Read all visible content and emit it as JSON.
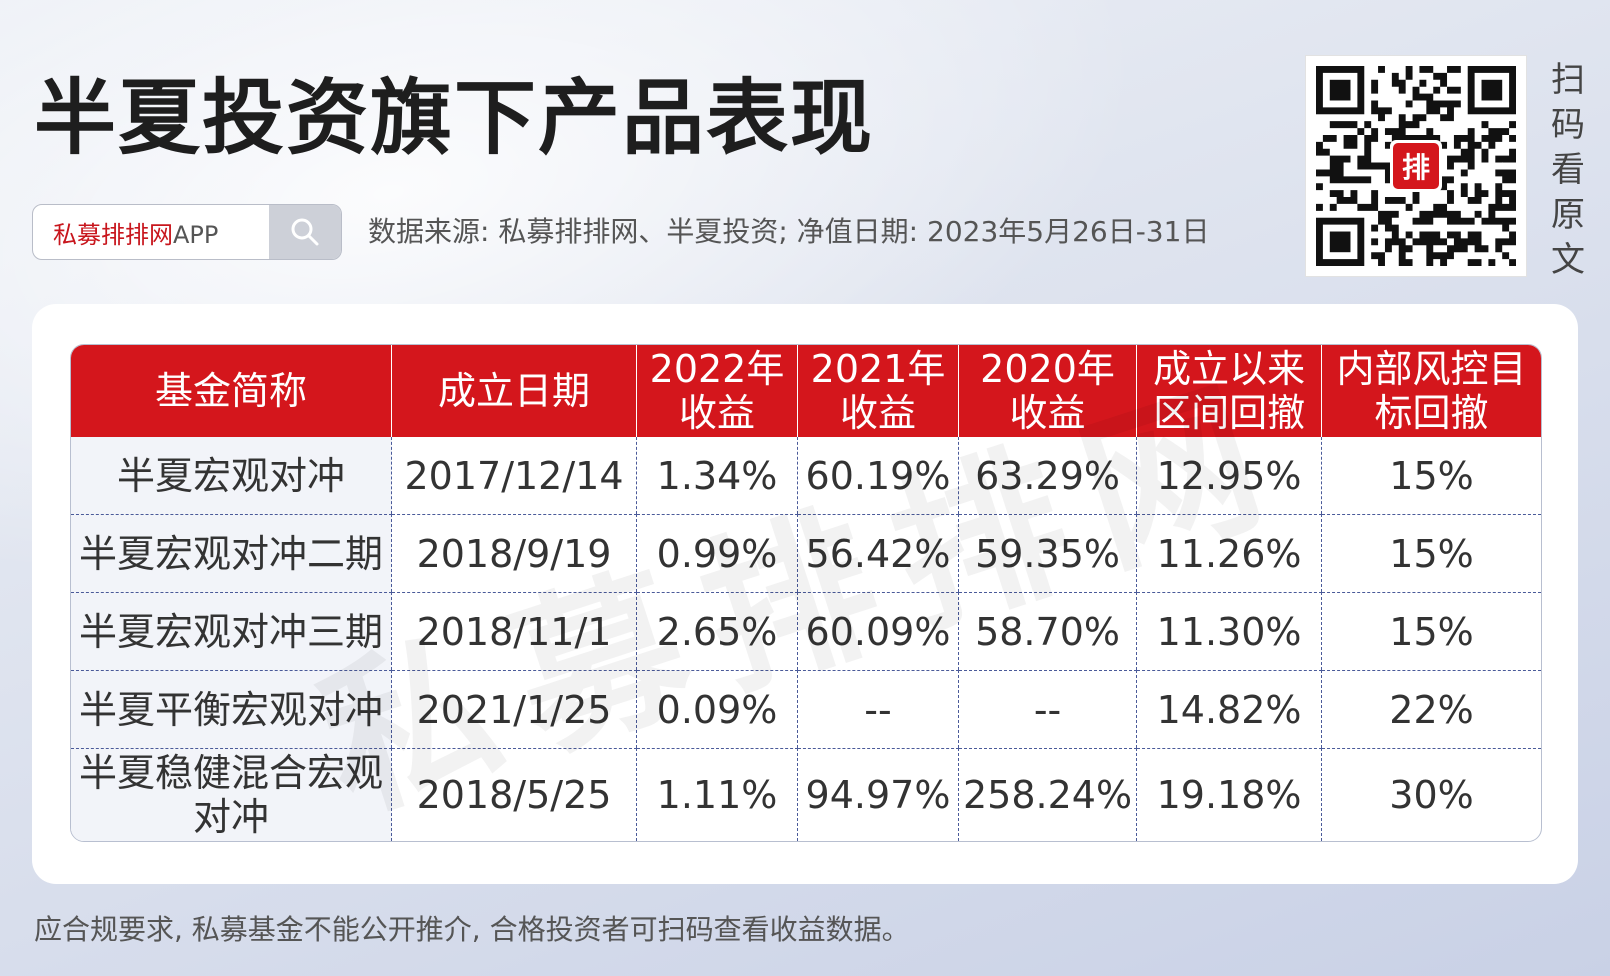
{
  "title": "半夏投资旗下产品表现",
  "search": {
    "brand": "私募排排网",
    "suffix": "APP"
  },
  "source_line": "数据来源: 私募排排网、半夏投资; 净值日期: 2023年5月26日-31日",
  "qr": {
    "badge_text": "排"
  },
  "scan_label": "扫码看原文",
  "watermark": "私募排排网",
  "table": {
    "headers": [
      "基金简称",
      "成立日期",
      "2022年收益",
      "2021年收益",
      "2020年收益",
      "成立以来区间回撤",
      "内部风控目标回撤"
    ],
    "rows": [
      [
        "半夏宏观对冲",
        "2017/12/14",
        "1.34%",
        "60.19%",
        "63.29%",
        "12.95%",
        "15%"
      ],
      [
        "半夏宏观对冲二期",
        "2018/9/19",
        "0.99%",
        "56.42%",
        "59.35%",
        "11.26%",
        "15%"
      ],
      [
        "半夏宏观对冲三期",
        "2018/11/1",
        "2.65%",
        "60.09%",
        "58.70%",
        "11.30%",
        "15%"
      ],
      [
        "半夏平衡宏观对冲",
        "2021/1/25",
        "0.09%",
        "--",
        "--",
        "14.82%",
        "22%"
      ],
      [
        "半夏稳健混合宏观对冲",
        "2018/5/25",
        "1.11%",
        "94.97%",
        "258.24%",
        "19.18%",
        "30%"
      ]
    ]
  },
  "footer_note": "应合规要求, 私募基金不能公开推介, 合格投资者可扫码查看收益数据。",
  "colors": {
    "accent": "#d4161c",
    "grid": "#4a5a99"
  }
}
